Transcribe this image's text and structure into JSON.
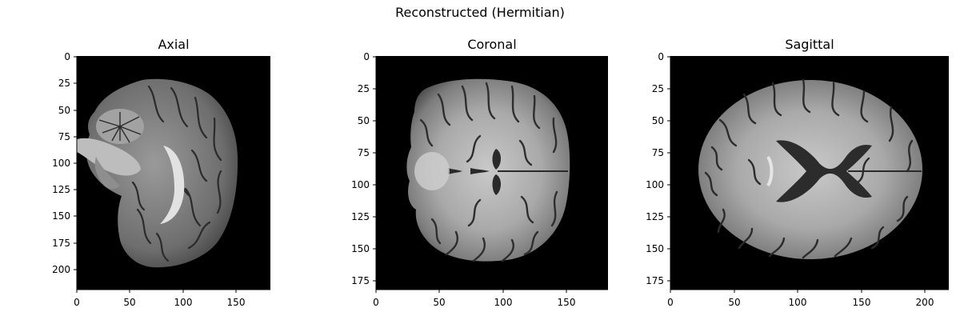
{
  "figure": {
    "suptitle": "Reconstructed (Hermitian)",
    "panels": [
      {
        "title": "Axial",
        "xticks": [
          "0",
          "50",
          "100",
          "150"
        ],
        "yticks": [
          "0",
          "25",
          "50",
          "75",
          "100",
          "125",
          "150",
          "175",
          "200"
        ]
      },
      {
        "title": "Coronal",
        "xticks": [
          "0",
          "50",
          "100",
          "150"
        ],
        "yticks": [
          "0",
          "25",
          "50",
          "75",
          "100",
          "125",
          "150",
          "175"
        ]
      },
      {
        "title": "Sagittal",
        "xticks": [
          "0",
          "50",
          "100",
          "150",
          "200"
        ],
        "yticks": [
          "0",
          "25",
          "50",
          "75",
          "100",
          "125",
          "150",
          "175"
        ]
      }
    ]
  }
}
